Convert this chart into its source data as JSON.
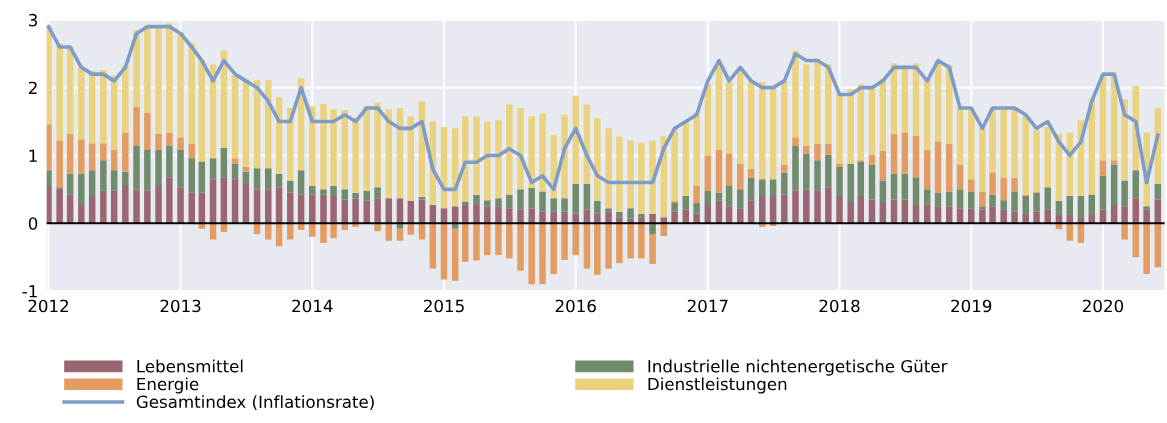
{
  "chart_data": {
    "type": "bar",
    "stacked": true,
    "x": [
      "2012-01",
      "2012-02",
      "2012-03",
      "2012-04",
      "2012-05",
      "2012-06",
      "2012-07",
      "2012-08",
      "2012-09",
      "2012-10",
      "2012-11",
      "2012-12",
      "2013-01",
      "2013-02",
      "2013-03",
      "2013-04",
      "2013-05",
      "2013-06",
      "2013-07",
      "2013-08",
      "2013-09",
      "2013-10",
      "2013-11",
      "2013-12",
      "2014-01",
      "2014-02",
      "2014-03",
      "2014-04",
      "2014-05",
      "2014-06",
      "2014-07",
      "2014-08",
      "2014-09",
      "2014-10",
      "2014-11",
      "2014-12",
      "2015-01",
      "2015-02",
      "2015-03",
      "2015-04",
      "2015-05",
      "2015-06",
      "2015-07",
      "2015-08",
      "2015-09",
      "2015-10",
      "2015-11",
      "2015-12",
      "2016-01",
      "2016-02",
      "2016-03",
      "2016-04",
      "2016-05",
      "2016-06",
      "2016-07",
      "2016-08",
      "2016-09",
      "2016-10",
      "2016-11",
      "2016-12",
      "2017-01",
      "2017-02",
      "2017-03",
      "2017-04",
      "2017-05",
      "2017-06",
      "2017-07",
      "2017-08",
      "2017-09",
      "2017-10",
      "2017-11",
      "2017-12",
      "2018-01",
      "2018-02",
      "2018-03",
      "2018-04",
      "2018-05",
      "2018-06",
      "2018-07",
      "2018-08",
      "2018-09",
      "2018-10",
      "2018-11",
      "2018-12",
      "2019-01",
      "2019-02",
      "2019-03",
      "2019-04",
      "2019-05",
      "2019-06",
      "2019-07",
      "2019-08",
      "2019-09",
      "2019-10",
      "2019-11",
      "2019-12",
      "2020-01",
      "2020-02",
      "2020-03",
      "2020-04",
      "2020-05",
      "2020-06"
    ],
    "series": [
      {
        "name": "Lebensmittel",
        "color": "#9a6672",
        "values": [
          0.55,
          0.51,
          0.42,
          0.27,
          0.4,
          0.48,
          0.48,
          0.55,
          0.5,
          0.48,
          0.55,
          0.68,
          0.53,
          0.45,
          0.45,
          0.65,
          0.68,
          0.65,
          0.58,
          0.5,
          0.5,
          0.53,
          0.45,
          0.42,
          0.42,
          0.42,
          0.4,
          0.35,
          0.37,
          0.33,
          0.37,
          0.37,
          0.37,
          0.33,
          0.35,
          0.27,
          0.22,
          0.25,
          0.27,
          0.27,
          0.25,
          0.25,
          0.22,
          0.2,
          0.22,
          0.17,
          0.17,
          0.17,
          0.14,
          0.2,
          0.14,
          0.17,
          0.09,
          0.07,
          0.09,
          0.14,
          0.09,
          0.17,
          0.2,
          0.14,
          0.27,
          0.33,
          0.25,
          0.22,
          0.34,
          0.4,
          0.4,
          0.42,
          0.48,
          0.5,
          0.48,
          0.53,
          0.4,
          0.3,
          0.4,
          0.35,
          0.3,
          0.35,
          0.35,
          0.27,
          0.27,
          0.25,
          0.25,
          0.22,
          0.22,
          0.2,
          0.25,
          0.2,
          0.17,
          0.12,
          0.17,
          0.2,
          0.12,
          0.12,
          0.09,
          0.12,
          0.2,
          0.27,
          0.25,
          0.37,
          0.2,
          0.35
        ]
      },
      {
        "name": "Industrielle nichtenergetische Güter",
        "color": "#718c6c",
        "values": [
          0.23,
          0.02,
          0.31,
          0.46,
          0.38,
          0.45,
          0.3,
          0.21,
          0.64,
          0.6,
          0.53,
          0.46,
          0.55,
          0.51,
          0.46,
          0.31,
          0.43,
          0.23,
          0.18,
          0.31,
          0.31,
          0.2,
          0.18,
          0.36,
          0.13,
          0.08,
          0.15,
          0.15,
          0.08,
          0.15,
          0.16,
          -0.02,
          -0.08,
          0,
          0.04,
          0,
          0,
          -0.08,
          0.05,
          0.15,
          0.09,
          0.12,
          0.2,
          0.3,
          0.3,
          0.3,
          0.2,
          0.2,
          0.44,
          0.38,
          0.19,
          0.05,
          0.08,
          0.15,
          0.05,
          -0.16,
          0,
          0.13,
          0.2,
          0.16,
          0.21,
          0.12,
          0.3,
          0.28,
          0.33,
          0.25,
          0.25,
          0.33,
          0.66,
          0.53,
          0.45,
          0.48,
          0.43,
          0.58,
          0.51,
          0.51,
          0.33,
          0.38,
          0.38,
          0.41,
          0.23,
          0.2,
          0.22,
          0.28,
          0.25,
          0.05,
          0.17,
          0.14,
          0.3,
          0.28,
          0.28,
          0.33,
          0.21,
          0.28,
          0.31,
          0.3,
          0.5,
          0.59,
          0.38,
          0.41,
          0.05,
          0.23
        ]
      },
      {
        "name": "Energie",
        "color": "#e39c62",
        "values": [
          0.68,
          0.69,
          0.59,
          0.51,
          0.4,
          0.25,
          0.3,
          0.58,
          0.58,
          0.55,
          0.24,
          0.2,
          0.19,
          0.21,
          -0.08,
          -0.24,
          -0.13,
          0.08,
          0.07,
          -0.16,
          -0.24,
          -0.34,
          -0.24,
          -0.1,
          -0.2,
          -0.29,
          -0.22,
          -0.1,
          -0.05,
          null,
          -0.12,
          -0.24,
          -0.18,
          -0.17,
          -0.24,
          -0.67,
          -0.83,
          -0.77,
          -0.57,
          -0.55,
          -0.47,
          -0.47,
          -0.52,
          -0.7,
          -0.9,
          -0.9,
          -0.75,
          -0.54,
          -0.47,
          -0.67,
          -0.76,
          -0.67,
          -0.59,
          -0.52,
          -0.52,
          -0.44,
          -0.19,
          0.03,
          null,
          0.25,
          0.52,
          0.63,
          0.48,
          0.38,
          0.13,
          -0.05,
          -0.04,
          0.11,
          0.13,
          0.11,
          0.24,
          0.16,
          0.05,
          0,
          0.02,
          0.15,
          0.44,
          0.59,
          0.61,
          0.61,
          0.58,
          0.76,
          0.7,
          0.36,
          0.18,
          0.22,
          0.33,
          0.33,
          0.2,
          0.02,
          0.02,
          0,
          -0.09,
          -0.26,
          -0.29,
          null,
          0.23,
          0.07,
          -0.24,
          -0.5,
          -0.75,
          -0.65
        ]
      },
      {
        "name": "Dienstleistungen",
        "color": "#ead37f",
        "values": [
          1.44,
          1.43,
          1.3,
          1.07,
          1.07,
          1.08,
          1.1,
          0.99,
          1.13,
          1.3,
          1.58,
          1.61,
          1.55,
          1.48,
          1.5,
          1.38,
          1.44,
          1.22,
          1.3,
          1.3,
          1.3,
          1.13,
          1.07,
          1.36,
          1.18,
          1.26,
          1.13,
          1.17,
          1.11,
          1.25,
          1.25,
          1.31,
          1.33,
          1.25,
          1.41,
          1.23,
          1.2,
          1.15,
          1.26,
          1.16,
          1.16,
          1.15,
          1.33,
          1.2,
          1.06,
          1.15,
          0.93,
          1.23,
          1.3,
          1.17,
          1.22,
          1.18,
          1.11,
          1.0,
          1.05,
          1.08,
          1.19,
          1.07,
          1.12,
          1.08,
          1.05,
          1.28,
          1.05,
          1.4,
          1.3,
          1.43,
          1.38,
          1.24,
          1.28,
          1.2,
          1.26,
          1.17,
          1.03,
          1.1,
          1.12,
          0.98,
          1.06,
          1.04,
          0.96,
          1.07,
          1.05,
          1.19,
          1.16,
          0.84,
          1.05,
          0.93,
          0.95,
          1.03,
          1.03,
          1.16,
          0.9,
          0.89,
          0.99,
          0.94,
          1.12,
          1.41,
          1.26,
          1.26,
          1.2,
          1.25,
          1.09,
          1.12
        ]
      },
      {
        "name": "Gesamtindex (Inflationsrate)",
        "type": "line",
        "color": "#7f9cc8",
        "values": [
          2.9,
          2.6,
          2.6,
          2.3,
          2.2,
          2.2,
          2.1,
          2.3,
          2.8,
          2.9,
          2.9,
          2.9,
          2.8,
          2.6,
          2.4,
          2.1,
          2.4,
          2.2,
          2.1,
          2.0,
          1.8,
          1.5,
          1.5,
          2.0,
          1.5,
          1.5,
          1.5,
          1.6,
          1.5,
          1.7,
          1.7,
          1.5,
          1.4,
          1.4,
          1.5,
          0.8,
          0.5,
          0.5,
          0.9,
          0.9,
          1.0,
          1.0,
          1.1,
          1.0,
          0.6,
          0.7,
          0.5,
          1.1,
          1.4,
          1.0,
          0.7,
          0.6,
          0.6,
          0.6,
          0.6,
          0.6,
          1.1,
          1.4,
          1.5,
          1.6,
          2.1,
          2.4,
          2.1,
          2.3,
          2.1,
          2.0,
          2.0,
          2.1,
          2.5,
          2.4,
          2.4,
          2.3,
          1.9,
          1.9,
          2.0,
          2.0,
          2.1,
          2.3,
          2.3,
          2.3,
          2.1,
          2.4,
          2.3,
          1.7,
          1.7,
          1.4,
          1.7,
          1.7,
          1.7,
          1.6,
          1.4,
          1.5,
          1.2,
          1.0,
          1.2,
          1.8,
          2.2,
          2.2,
          1.6,
          1.5,
          0.6,
          1.3
        ]
      }
    ],
    "xlim": [
      "2011-12-27",
      "2020-06-20"
    ],
    "xticks": [
      {
        "value": "2012-01-01",
        "label": "2012"
      },
      {
        "value": "2013-01-01",
        "label": "2013"
      },
      {
        "value": "2014-01-01",
        "label": "2014"
      },
      {
        "value": "2015-01-01",
        "label": "2015"
      },
      {
        "value": "2016-01-01",
        "label": "2016"
      },
      {
        "value": "2017-01-01",
        "label": "2017"
      },
      {
        "value": "2018-01-01",
        "label": "2018"
      },
      {
        "value": "2019-01-01",
        "label": "2019"
      },
      {
        "value": "2020-01-01",
        "label": "2020"
      }
    ],
    "ylim": [
      -1,
      3
    ],
    "yticks": [
      -1,
      0,
      1,
      2,
      3
    ],
    "ref_lines": [
      {
        "axis": "y",
        "value": 0,
        "color": "#000000"
      }
    ],
    "grid": true,
    "legend": "bottom"
  }
}
